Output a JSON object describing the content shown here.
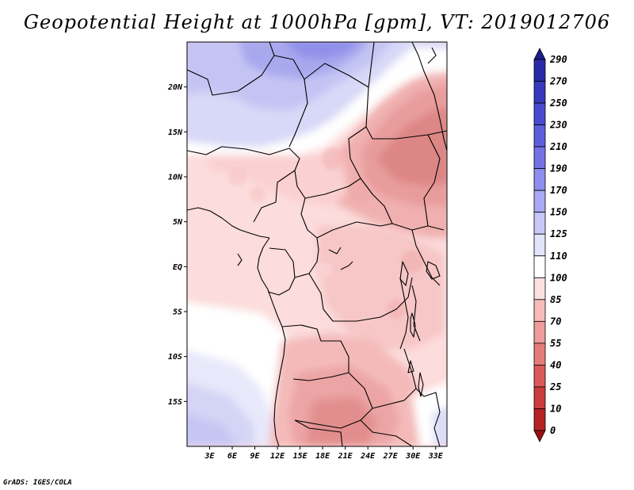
{
  "title": "Geopotential Height at 1000hPa [gpm], VT: 2019012706",
  "footer": "GrADS: IGES/COLA",
  "map": {
    "lon_range": [
      0,
      34.5
    ],
    "lat_range": [
      -20,
      25
    ],
    "lon_ticks": [
      "3E",
      "6E",
      "9E",
      "12E",
      "15E",
      "18E",
      "21E",
      "24E",
      "27E",
      "30E",
      "33E"
    ],
    "lon_tick_values": [
      3,
      6,
      9,
      12,
      15,
      18,
      21,
      24,
      27,
      30,
      33
    ],
    "lat_ticks": [
      "20N",
      "15N",
      "10N",
      "5N",
      "EQ",
      "5S",
      "10S",
      "15S"
    ],
    "lat_tick_values": [
      20,
      15,
      10,
      5,
      0,
      -5,
      -10,
      -15
    ]
  },
  "colorbar": {
    "levels": [
      "290",
      "270",
      "250",
      "230",
      "210",
      "190",
      "170",
      "150",
      "125",
      "110",
      "100",
      "85",
      "70",
      "55",
      "40",
      "25",
      "10",
      "0"
    ],
    "colors": [
      "#1c1c8a",
      "#2a2aa8",
      "#3838be",
      "#4a4ad0",
      "#5e5edc",
      "#7373e6",
      "#8e8eee",
      "#a9a9f4",
      "#c7c7f8",
      "#e3e3fb",
      "#ffffff",
      "#fce0e0",
      "#f6bcbc",
      "#ee9c9c",
      "#e47c7c",
      "#da5a5a",
      "#cc3c3c",
      "#b62222",
      "#9a1010"
    ]
  }
}
